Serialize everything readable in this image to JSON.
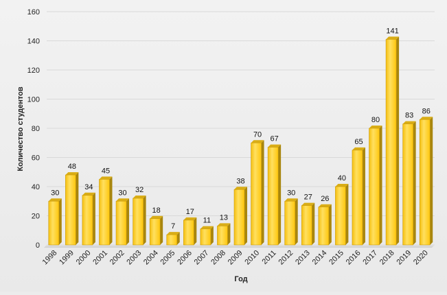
{
  "chart_data": {
    "type": "bar",
    "title": "",
    "xlabel": "Год",
    "ylabel": "Количество студентов",
    "categories": [
      "1998",
      "1999",
      "2000",
      "2001",
      "2002",
      "2003",
      "2004",
      "2005",
      "2006",
      "2007",
      "2008",
      "2009",
      "2010",
      "2011",
      "2012",
      "2013",
      "2014",
      "2015",
      "2016",
      "2017",
      "2018",
      "2019",
      "2020"
    ],
    "values": [
      30,
      48,
      34,
      45,
      30,
      32,
      18,
      7,
      17,
      11,
      13,
      38,
      70,
      67,
      30,
      27,
      26,
      40,
      65,
      80,
      141,
      83,
      86
    ],
    "ylim": [
      0,
      160
    ],
    "yticks": [
      0,
      20,
      40,
      60,
      80,
      100,
      120,
      140,
      160
    ],
    "grid": true,
    "legend": "none",
    "bar_style": "3d-column",
    "colors": {
      "bar_front": "#ffd21a",
      "bar_highlight": "#ffe77a",
      "bar_side": "#a8860e",
      "bar_top": "#d9ad16",
      "grid": "#d9d9d9",
      "floor": "#d2d2d2"
    }
  }
}
